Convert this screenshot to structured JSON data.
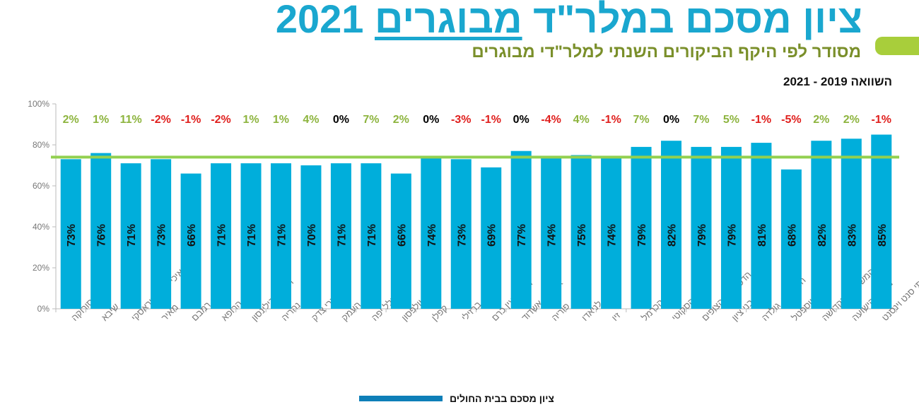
{
  "header": {
    "title_main": "ציון מסכם במלר\"ד ",
    "title_underlined": "מבוגרים",
    "title_year": " 2021",
    "subtitle": "מסודר לפי היקף הביקורים השנתי למלר\"די מבוגרים",
    "comparison": "השוואה  2019 - 2021"
  },
  "colors": {
    "bar": "#00AEDB",
    "average_line": "#92D050",
    "positive": "#8DB43E",
    "negative": "#E0201E",
    "neutral": "#000000",
    "legend": "#0E7FB8"
  },
  "chart_data": {
    "type": "bar",
    "ylim": [
      0,
      100
    ],
    "yticks": [
      "0%",
      "20%",
      "40%",
      "60%",
      "80%",
      "100%"
    ],
    "grid": false,
    "legend_position": "bottom",
    "average_line": 74,
    "categories": [
      "סורוקה",
      "שיבא",
      "איכילוב - סוראסקי",
      "מאיר",
      "רמבם",
      "אסף הרופא",
      "רבין ק.בילינסון",
      "נהריה",
      "שערי צדק",
      "העמק",
      "הלל יפה",
      "וולפסון",
      "קפלן",
      "ברזילי",
      "הדסה עין כרם",
      "אסותא אשדוד",
      "פוריה",
      "לניאדו",
      "זיו",
      "הכרמל",
      "הסקוטי",
      "הדסה הר הצופים",
      "בני ציון",
      "השרון-ק. גולדה",
      "יוספטל",
      "המשפחה הקדושה",
      "מעייני הישועה",
      "הצרפתי סנט וינסנט"
    ],
    "series": [
      {
        "name": "ציון מסכם בבית החולים",
        "values": [
          73,
          76,
          71,
          73,
          66,
          71,
          71,
          71,
          70,
          71,
          71,
          66,
          74,
          73,
          69,
          77,
          74,
          75,
          74,
          79,
          82,
          79,
          79,
          81,
          68,
          82,
          83,
          85
        ]
      }
    ],
    "value_labels": [
      "73%",
      "76%",
      "71%",
      "73%",
      "66%",
      "71%",
      "71%",
      "71%",
      "70%",
      "71%",
      "71%",
      "66%",
      "74%",
      "73%",
      "69%",
      "77%",
      "74%",
      "75%",
      "74%",
      "79%",
      "82%",
      "79%",
      "79%",
      "81%",
      "68%",
      "82%",
      "83%",
      "85%"
    ],
    "change_2019_2021": [
      "2%",
      "1%",
      "11%",
      "-2%",
      "-1%",
      "-2%",
      "1%",
      "1%",
      "4%",
      "0%",
      "7%",
      "2%",
      "0%",
      "-3%",
      "-1%",
      "0%",
      "-4%",
      "4%",
      "-1%",
      "7%",
      "0%",
      "7%",
      "5%",
      "-1%",
      "-5%",
      "2%",
      "2%",
      "-1%"
    ]
  }
}
